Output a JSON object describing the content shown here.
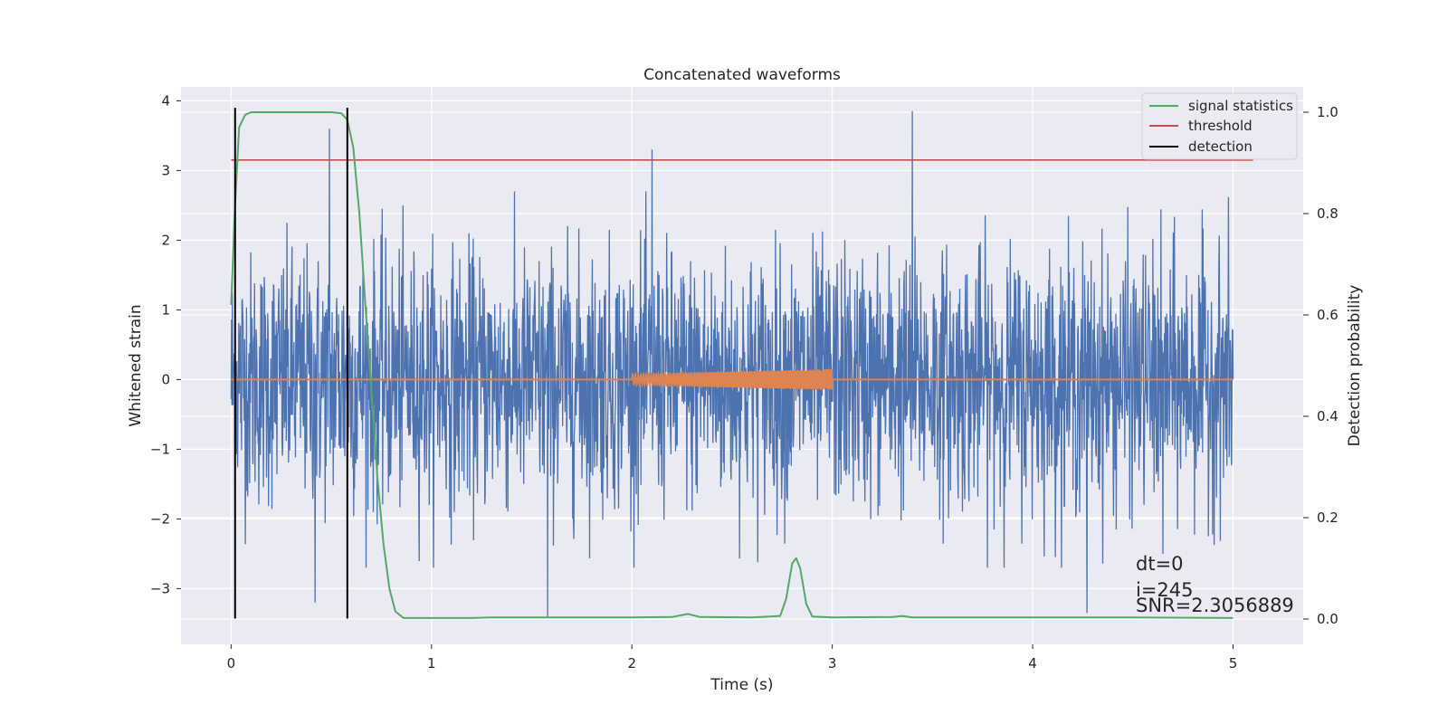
{
  "chart_data": {
    "type": "line",
    "title": "Concatenated waveforms",
    "xlabel": "Time (s)",
    "ylabel": "Whitened strain",
    "ylabel_right": "Detection probability",
    "xlim": [
      -0.25,
      5.35
    ],
    "ylim": [
      -3.8,
      4.2
    ],
    "ylim_right": [
      -0.05,
      1.05
    ],
    "xticks": [
      0,
      1,
      2,
      3,
      4,
      5
    ],
    "yticks": [
      -3,
      -2,
      -1,
      0,
      1,
      2,
      3,
      4
    ],
    "yticks_right": [
      0.0,
      0.2,
      0.4,
      0.6,
      0.8,
      1.0
    ],
    "xtick_labels": [
      "0",
      "1",
      "2",
      "3",
      "4",
      "5"
    ],
    "ytick_labels": [
      "−3",
      "−2",
      "−1",
      "0",
      "1",
      "2",
      "3",
      "4"
    ],
    "ytick_labels_right": [
      "0.0",
      "0.2",
      "0.4",
      "0.6",
      "0.8",
      "1.0"
    ],
    "grid": true,
    "legend_position": "top-right",
    "legend": [
      {
        "name": "signal statistics",
        "color": "#55a868"
      },
      {
        "name": "threshold",
        "color": "#c44e52"
      },
      {
        "name": "detection",
        "color": "#000000"
      }
    ],
    "series": [
      {
        "role": "whitened noise strain",
        "color": "#4c72b0",
        "x_range": [
          0,
          5
        ],
        "typical_band": [
          -2.0,
          2.0
        ],
        "peaks": [
          {
            "x": 0.49,
            "y": 3.6
          },
          {
            "x": 2.1,
            "y": 3.3
          },
          {
            "x": 3.4,
            "y": 3.85
          },
          {
            "x": 1.58,
            "y": -3.4
          },
          {
            "x": 0.42,
            "y": -3.2
          },
          {
            "x": 4.27,
            "y": -3.35
          },
          {
            "x": 4.65,
            "y": -2.5
          }
        ]
      },
      {
        "role": "injected waveform",
        "color": "#dd8452",
        "x_range": [
          0,
          5
        ],
        "chirp_range": [
          2.0,
          3.0
        ],
        "amplitude_range": [
          0.08,
          0.15
        ]
      },
      {
        "name": "signal statistics",
        "color": "#55a868",
        "axis": "right",
        "points": [
          [
            0,
            0.62
          ],
          [
            0.02,
            0.82
          ],
          [
            0.04,
            0.97
          ],
          [
            0.07,
            0.995
          ],
          [
            0.1,
            1.0
          ],
          [
            0.5,
            1.0
          ],
          [
            0.55,
            0.998
          ],
          [
            0.58,
            0.985
          ],
          [
            0.61,
            0.93
          ],
          [
            0.64,
            0.8
          ],
          [
            0.67,
            0.62
          ],
          [
            0.7,
            0.45
          ],
          [
            0.73,
            0.28
          ],
          [
            0.76,
            0.15
          ],
          [
            0.79,
            0.06
          ],
          [
            0.82,
            0.015
          ],
          [
            0.86,
            0.002
          ],
          [
            1.2,
            0.002
          ],
          [
            1.3,
            0.003
          ],
          [
            2.0,
            0.003
          ],
          [
            2.2,
            0.004
          ],
          [
            2.28,
            0.01
          ],
          [
            2.34,
            0.004
          ],
          [
            2.6,
            0.003
          ],
          [
            2.74,
            0.006
          ],
          [
            2.77,
            0.04
          ],
          [
            2.8,
            0.11
          ],
          [
            2.82,
            0.12
          ],
          [
            2.84,
            0.1
          ],
          [
            2.87,
            0.03
          ],
          [
            2.9,
            0.005
          ],
          [
            3.0,
            0.003
          ],
          [
            3.3,
            0.004
          ],
          [
            3.35,
            0.006
          ],
          [
            3.4,
            0.003
          ],
          [
            4.5,
            0.003
          ],
          [
            5.0,
            0.002
          ]
        ]
      },
      {
        "name": "threshold",
        "color": "#c44e52",
        "value": 3.15,
        "x_range": [
          0,
          5.1
        ]
      },
      {
        "name": "detection",
        "color": "#000000",
        "x": [
          0.02,
          0.58
        ],
        "y_range": [
          -3.43,
          3.9
        ]
      }
    ],
    "annotations": [
      "dt=0",
      "i=245",
      "SNR=2.3056889"
    ],
    "annotation_position": {
      "x": 4.5,
      "y": [
        -2.6,
        -2.9,
        -3.2
      ]
    }
  }
}
